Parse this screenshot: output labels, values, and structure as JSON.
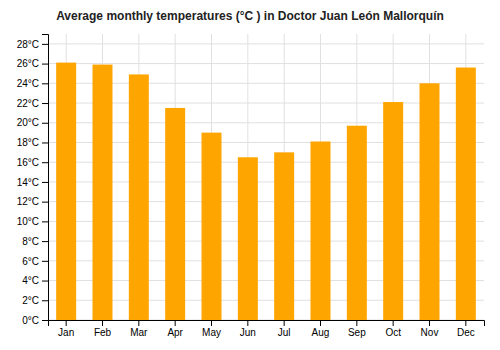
{
  "chart_data": {
    "type": "bar",
    "title": "Average monthly temperatures (°C ) in Doctor Juan León Mallorquín",
    "categories": [
      "Jan",
      "Feb",
      "Mar",
      "Apr",
      "May",
      "Jun",
      "Jul",
      "Aug",
      "Sep",
      "Oct",
      "Nov",
      "Dec"
    ],
    "values": [
      26.1,
      25.9,
      24.9,
      21.5,
      19.0,
      16.5,
      17.0,
      18.1,
      19.7,
      22.1,
      24.0,
      25.6
    ],
    "color": "#FFA500",
    "ylim": [
      0,
      29
    ],
    "yticks": [
      {
        "value": 0,
        "label": "0°C"
      },
      {
        "value": 2,
        "label": "2°C"
      },
      {
        "value": 4,
        "label": "4°C"
      },
      {
        "value": 6,
        "label": "6°C"
      },
      {
        "value": 8,
        "label": "8°C"
      },
      {
        "value": 10,
        "label": "10°C"
      },
      {
        "value": 12,
        "label": "12°C"
      },
      {
        "value": 14,
        "label": "14°C"
      },
      {
        "value": 16,
        "label": "16°C"
      },
      {
        "value": 18,
        "label": "18°C"
      },
      {
        "value": 20,
        "label": "20°C"
      },
      {
        "value": 22,
        "label": "22°C"
      },
      {
        "value": 24,
        "label": "24°C"
      },
      {
        "value": 26,
        "label": "26°C"
      },
      {
        "value": 28,
        "label": "28°C"
      }
    ],
    "grid": true
  }
}
